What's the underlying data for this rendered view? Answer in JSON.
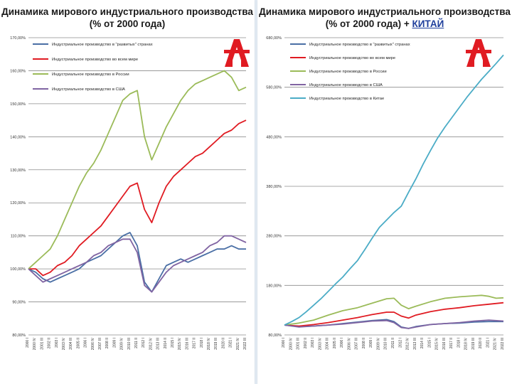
{
  "colors": {
    "developed": "#4a6fa5",
    "world": "#e01b22",
    "russia": "#9bbb59",
    "usa": "#8064a2",
    "china": "#4bacc6",
    "grid": "#8c8c8c",
    "logo": "#e01b22"
  },
  "logo": {
    "icon": "company-logo-icon"
  },
  "chart_data": [
    {
      "type": "line",
      "title_line1": "Динамика мирового индустриального производства",
      "title_line2": "(% от 2000 года)",
      "ylim": [
        80,
        170
      ],
      "yticks": [
        "80,00%",
        "90,00%",
        "100,00%",
        "110,00%",
        "120,00%",
        "130,00%",
        "140,00%",
        "150,00%",
        "160,00%",
        "170,00%"
      ],
      "ytick_values": [
        80,
        90,
        100,
        110,
        120,
        130,
        140,
        150,
        160,
        170
      ],
      "x_count": 31,
      "xticks": [
        "2000 I",
        "2000 IV",
        "2001 III",
        "2002 II",
        "2003 I",
        "2003 IV",
        "2004 III",
        "2005 II",
        "2006 I",
        "2006 IV",
        "2007 III",
        "2008 II",
        "2009 I",
        "2009 IV",
        "2010 III",
        "2011 II",
        "2012 I",
        "2012 IV",
        "2013 III",
        "2014 II",
        "2015 I",
        "2015 IV",
        "2016 III",
        "2017 II",
        "2018 I",
        "2018 IV",
        "2019 III",
        "2020 II",
        "2021 I",
        "2021 IV",
        "2022 III"
      ],
      "legend": [
        "Индустриальное производство в \"развитых\" странах",
        "Индустриальное производство во всем мире",
        "Индустриальное производство в России",
        "Индустриальное производство в США"
      ],
      "series": [
        {
          "name": "Индустриальное производство в \"развитых\" странах",
          "color_key": "developed",
          "points": [
            [
              0,
              100
            ],
            [
              1,
              99
            ],
            [
              2,
              97
            ],
            [
              3,
              96
            ],
            [
              4,
              97
            ],
            [
              5,
              98
            ],
            [
              6,
              99
            ],
            [
              7,
              100
            ],
            [
              8,
              102
            ],
            [
              9,
              103
            ],
            [
              10,
              104
            ],
            [
              11,
              106
            ],
            [
              12,
              108
            ],
            [
              13,
              110
            ],
            [
              14,
              111
            ],
            [
              15,
              107
            ],
            [
              16,
              96
            ],
            [
              17,
              93
            ],
            [
              18,
              97
            ],
            [
              19,
              101
            ],
            [
              20,
              102
            ],
            [
              21,
              103
            ],
            [
              22,
              102
            ],
            [
              23,
              103
            ],
            [
              24,
              104
            ],
            [
              25,
              105
            ],
            [
              26,
              106
            ],
            [
              27,
              106
            ],
            [
              28,
              107
            ],
            [
              29,
              106
            ],
            [
              30,
              106
            ]
          ]
        },
        {
          "name": "Индустриальное производство во всем мире",
          "color_key": "world",
          "points": [
            [
              0,
              100
            ],
            [
              1,
              100
            ],
            [
              2,
              98
            ],
            [
              3,
              99
            ],
            [
              4,
              101
            ],
            [
              5,
              102
            ],
            [
              6,
              104
            ],
            [
              7,
              107
            ],
            [
              8,
              109
            ],
            [
              9,
              111
            ],
            [
              10,
              113
            ],
            [
              11,
              116
            ],
            [
              12,
              119
            ],
            [
              13,
              122
            ],
            [
              14,
              125
            ],
            [
              15,
              126
            ],
            [
              16,
              118
            ],
            [
              17,
              114
            ],
            [
              18,
              120
            ],
            [
              19,
              125
            ],
            [
              20,
              128
            ],
            [
              21,
              130
            ],
            [
              22,
              132
            ],
            [
              23,
              134
            ],
            [
              24,
              135
            ],
            [
              25,
              137
            ],
            [
              26,
              139
            ],
            [
              27,
              141
            ],
            [
              28,
              142
            ],
            [
              29,
              144
            ],
            [
              30,
              145
            ]
          ]
        },
        {
          "name": "Индустриальное производство в России",
          "color_key": "russia",
          "points": [
            [
              0,
              100
            ],
            [
              1,
              102
            ],
            [
              2,
              104
            ],
            [
              3,
              106
            ],
            [
              4,
              110
            ],
            [
              5,
              115
            ],
            [
              6,
              120
            ],
            [
              7,
              125
            ],
            [
              8,
              129
            ],
            [
              9,
              132
            ],
            [
              10,
              136
            ],
            [
              11,
              141
            ],
            [
              12,
              146
            ],
            [
              13,
              151
            ],
            [
              14,
              153
            ],
            [
              15,
              154
            ],
            [
              16,
              140
            ],
            [
              17,
              133
            ],
            [
              18,
              138
            ],
            [
              19,
              143
            ],
            [
              20,
              147
            ],
            [
              21,
              151
            ],
            [
              22,
              154
            ],
            [
              23,
              156
            ],
            [
              24,
              157
            ],
            [
              25,
              158
            ],
            [
              26,
              159
            ],
            [
              27,
              160
            ],
            [
              28,
              158
            ],
            [
              29,
              154
            ],
            [
              30,
              155
            ]
          ]
        },
        {
          "name": "Индустриальное производство в США",
          "color_key": "usa",
          "points": [
            [
              0,
              100
            ],
            [
              1,
              98
            ],
            [
              2,
              96
            ],
            [
              3,
              97
            ],
            [
              4,
              98
            ],
            [
              5,
              99
            ],
            [
              6,
              100
            ],
            [
              7,
              101
            ],
            [
              8,
              102
            ],
            [
              9,
              104
            ],
            [
              10,
              105
            ],
            [
              11,
              107
            ],
            [
              12,
              108
            ],
            [
              13,
              109
            ],
            [
              14,
              109
            ],
            [
              15,
              105
            ],
            [
              16,
              95
            ],
            [
              17,
              93
            ],
            [
              18,
              96
            ],
            [
              19,
              99
            ],
            [
              20,
              101
            ],
            [
              21,
              102
            ],
            [
              22,
              103
            ],
            [
              23,
              104
            ],
            [
              24,
              105
            ],
            [
              25,
              107
            ],
            [
              26,
              108
            ],
            [
              27,
              110
            ],
            [
              28,
              110
            ],
            [
              29,
              109
            ],
            [
              30,
              108
            ]
          ]
        }
      ]
    },
    {
      "type": "line",
      "title_line1": "Динамика мирового индустриального производства",
      "title_line2": "(% от 2000 года) + ",
      "title_accent": "КИТАЙ",
      "ylim": [
        80,
        680
      ],
      "yticks": [
        "80,00%",
        "180,00%",
        "280,00%",
        "380,00%",
        "480,00%",
        "580,00%",
        "680,00%"
      ],
      "ytick_values": [
        80,
        180,
        280,
        380,
        480,
        580,
        680
      ],
      "x_count": 31,
      "xticks": [
        "2000 I",
        "2000 IV",
        "2001 III",
        "2002 II",
        "2003 I",
        "2003 IV",
        "2004 III",
        "2005 II",
        "2006 I",
        "2006 IV",
        "2007 III",
        "2008 II",
        "2009 I",
        "2009 IV",
        "2010 III",
        "2011 II",
        "2012 I",
        "2012 IV",
        "2013 III",
        "2014 II",
        "2015 I",
        "2015 IV",
        "2016 III",
        "2017 II",
        "2018 I",
        "2018 IV",
        "2019 III",
        "2020 II",
        "2021 I",
        "2021 IV",
        "2022 III"
      ],
      "legend": [
        "Индустриальное производство в \"развитых\" странах",
        "Индустриальное производство во всем мире",
        "Индустриальное производство в России",
        "Индустриальное производство в США",
        "Индустриальное производство в Китае"
      ],
      "series": [
        {
          "name": "Индустриальное производство в \"развитых\" странах",
          "color_key": "developed",
          "points": [
            [
              0,
              100
            ],
            [
              2,
              97
            ],
            [
              4,
              98
            ],
            [
              6,
              100
            ],
            [
              8,
              103
            ],
            [
              10,
              106
            ],
            [
              12,
              109
            ],
            [
              14,
              111
            ],
            [
              15,
              107
            ],
            [
              16,
              96
            ],
            [
              17,
              93
            ],
            [
              18,
              97
            ],
            [
              20,
              101
            ],
            [
              22,
              103
            ],
            [
              24,
              104
            ],
            [
              26,
              106
            ],
            [
              28,
              107
            ],
            [
              30,
              107
            ]
          ]
        },
        {
          "name": "Индустриальное производство во всем мире",
          "color_key": "world",
          "points": [
            [
              0,
              100
            ],
            [
              2,
              98
            ],
            [
              4,
              101
            ],
            [
              6,
              105
            ],
            [
              8,
              110
            ],
            [
              10,
              115
            ],
            [
              12,
              121
            ],
            [
              14,
              126
            ],
            [
              15,
              126
            ],
            [
              16,
              118
            ],
            [
              17,
              114
            ],
            [
              18,
              120
            ],
            [
              20,
              127
            ],
            [
              22,
              132
            ],
            [
              24,
              135
            ],
            [
              26,
              139
            ],
            [
              28,
              142
            ],
            [
              30,
              145
            ]
          ]
        },
        {
          "name": "Индустриальное производство в России",
          "color_key": "russia",
          "points": [
            [
              0,
              100
            ],
            [
              2,
              104
            ],
            [
              4,
              110
            ],
            [
              6,
              120
            ],
            [
              8,
              129
            ],
            [
              10,
              135
            ],
            [
              12,
              144
            ],
            [
              14,
              153
            ],
            [
              15,
              154
            ],
            [
              16,
              140
            ],
            [
              17,
              133
            ],
            [
              18,
              138
            ],
            [
              20,
              147
            ],
            [
              22,
              154
            ],
            [
              24,
              157
            ],
            [
              26,
              159
            ],
            [
              27,
              160
            ],
            [
              28,
              158
            ],
            [
              29,
              154
            ],
            [
              30,
              155
            ]
          ]
        },
        {
          "name": "Индустриальное производство в США",
          "color_key": "usa",
          "points": [
            [
              0,
              100
            ],
            [
              2,
              96
            ],
            [
              4,
              98
            ],
            [
              6,
              100
            ],
            [
              8,
              102
            ],
            [
              10,
              105
            ],
            [
              12,
              108
            ],
            [
              14,
              109
            ],
            [
              15,
              105
            ],
            [
              16,
              95
            ],
            [
              17,
              93
            ],
            [
              18,
              96
            ],
            [
              20,
              101
            ],
            [
              22,
              103
            ],
            [
              24,
              105
            ],
            [
              26,
              108
            ],
            [
              28,
              110
            ],
            [
              30,
              108
            ]
          ]
        },
        {
          "name": "Индустриальное производство в Китае",
          "color_key": "china",
          "points": [
            [
              0,
              100
            ],
            [
              1,
              107
            ],
            [
              2,
              115
            ],
            [
              3,
              127
            ],
            [
              4,
              140
            ],
            [
              5,
              153
            ],
            [
              6,
              168
            ],
            [
              7,
              183
            ],
            [
              8,
              197
            ],
            [
              9,
              214
            ],
            [
              10,
              230
            ],
            [
              11,
              252
            ],
            [
              12,
              275
            ],
            [
              13,
              297
            ],
            [
              14,
              312
            ],
            [
              15,
              327
            ],
            [
              16,
              340
            ],
            [
              17,
              368
            ],
            [
              18,
              395
            ],
            [
              19,
              425
            ],
            [
              20,
              452
            ],
            [
              21,
              478
            ],
            [
              22,
              500
            ],
            [
              23,
              520
            ],
            [
              24,
              540
            ],
            [
              25,
              560
            ],
            [
              26,
              578
            ],
            [
              27,
              596
            ],
            [
              28,
              612
            ],
            [
              29,
              628
            ],
            [
              30,
              645
            ]
          ]
        }
      ]
    }
  ]
}
